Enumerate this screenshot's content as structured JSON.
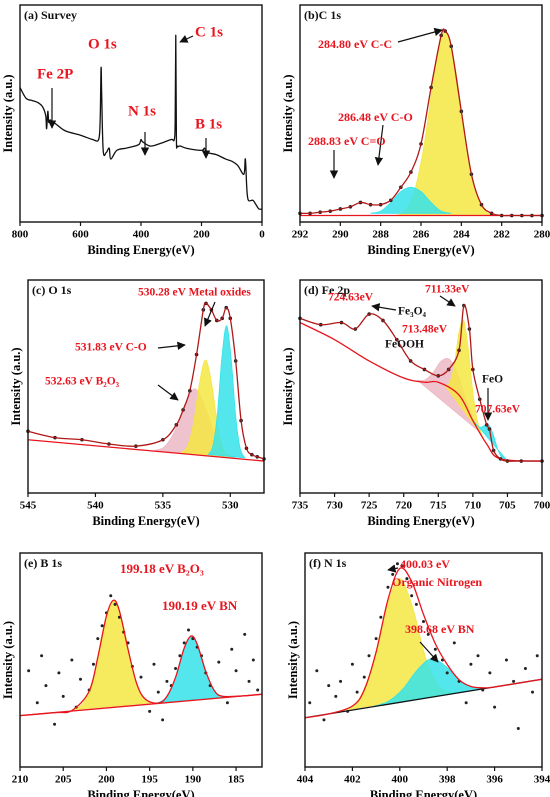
{
  "chart_data": [
    {
      "type": "line",
      "title": "(a) Survey",
      "xlabel": "Binding Energy(eV)",
      "ylabel": "Intensity (a.u.)",
      "xlim": [
        800,
        0
      ],
      "ylim": [
        0,
        100
      ],
      "xticks": [
        800,
        600,
        400,
        200,
        0
      ],
      "envelope": {
        "color": "#111111",
        "markers": false,
        "x": [
          800,
          780,
          760,
          740,
          725,
          715,
          712,
          708,
          705,
          700,
          680,
          650,
          600,
          560,
          540,
          535,
          532,
          530,
          525,
          515,
          505,
          500,
          480,
          450,
          420,
          405,
          400,
          395,
          370,
          340,
          300,
          290,
          287,
          285,
          283,
          280,
          270,
          250,
          200,
          190,
          180,
          150,
          120,
          100,
          80,
          60,
          55,
          50,
          45,
          30,
          20,
          10,
          0
        ],
        "values": [
          62,
          57,
          56,
          55,
          53,
          49,
          43,
          51,
          46,
          47,
          45,
          42,
          40,
          38,
          38,
          47,
          71,
          59,
          33,
          32,
          34,
          29,
          33,
          34,
          35,
          36,
          38,
          37,
          35,
          36,
          38,
          38,
          47,
          86,
          39,
          35,
          35,
          34,
          33,
          34,
          32,
          31,
          29,
          28,
          26,
          22,
          29,
          15,
          10,
          10,
          8,
          6,
          6
        ]
      },
      "annotations": [
        {
          "text": "O 1s",
          "color": "#e8141e"
        },
        {
          "text": "Fe 2P",
          "color": "#e8141e"
        },
        {
          "text": "N 1s",
          "color": "#e8141e"
        },
        {
          "text": "C 1s",
          "color": "#e8141e"
        },
        {
          "text": "B 1s",
          "color": "#e8141e"
        }
      ]
    },
    {
      "type": "line",
      "title": "(b)C 1s",
      "xlabel": "Binding Energy(eV)",
      "ylabel": "Intensity (a.u.)",
      "xlim": [
        292,
        280
      ],
      "ylim": [
        0,
        100
      ],
      "xticks": [
        292,
        290,
        288,
        286,
        284,
        282,
        280
      ],
      "background": {
        "color": "#e8141e",
        "x": [
          292,
          280
        ],
        "values": [
          3,
          3
        ]
      },
      "components": [
        {
          "color": "#f5e642",
          "x": [
            287.3,
            286.8,
            286.3,
            285.8,
            285.3,
            284.8,
            284.3,
            283.8,
            283.3,
            282.8,
            282.3
          ],
          "values": [
            0,
            2,
            12,
            35,
            68,
            85,
            68,
            35,
            12,
            2,
            0
          ]
        },
        {
          "color": "#35e3ea",
          "x": [
            288.5,
            288,
            287.5,
            287,
            286.5,
            286,
            285.5,
            285,
            284.5
          ],
          "values": [
            1,
            2,
            6,
            11,
            13,
            11,
            6,
            2,
            1
          ]
        }
      ],
      "envelope": {
        "color": "#b01818",
        "markers": true,
        "marker_color": "#222222",
        "x": [
          292,
          291.5,
          291,
          290.5,
          290,
          289.5,
          289,
          288.5,
          288,
          287.5,
          287,
          286.5,
          286,
          285.5,
          285,
          284.8,
          284.5,
          284,
          283.5,
          283,
          282.5,
          282,
          281.5,
          281,
          280.5,
          280
        ],
        "values": [
          4,
          4,
          4.5,
          5,
          6,
          7,
          9,
          8,
          8,
          10,
          16,
          23,
          36,
          62,
          86,
          88,
          81,
          51,
          22,
          8,
          4,
          3,
          3,
          3,
          3,
          3
        ]
      },
      "annotations": [
        {
          "text": "284.80 eV C-C",
          "color": "#e8141e"
        },
        {
          "text": "286.48 eV C-O",
          "color": "#e8141e"
        },
        {
          "text": "288.83 eV C=O",
          "color": "#e8141e"
        }
      ]
    },
    {
      "type": "line",
      "title": "(c) O 1s",
      "xlabel": "Binding Energy(eV)",
      "ylabel": "Intensity (a.u.)",
      "xlim": [
        545,
        527.5
      ],
      "ylim": [
        0,
        100
      ],
      "xticks": [
        545,
        540,
        535,
        530
      ],
      "background": {
        "color": "#e8141e",
        "x": [
          545,
          527.5
        ],
        "values": [
          25,
          15
        ]
      },
      "components": [
        {
          "color": "#ecb8c4",
          "x": [
            535.63,
            534.88,
            534.13,
            533.38,
            532.63,
            531.88,
            531.13,
            530.38,
            529.63
          ],
          "values": [
            0.3,
            2.5,
            10,
            23,
            31,
            23,
            10,
            2.5,
            0.3
          ]
        },
        {
          "color": "#f5e642",
          "x": [
            533.63,
            533.18,
            532.73,
            532.28,
            531.83,
            531.38,
            530.93,
            530.48,
            530.03
          ],
          "values": [
            0.5,
            3.6,
            14.6,
            34,
            45,
            34,
            14.6,
            3.6,
            0.5
          ]
        },
        {
          "color": "#35e3ea",
          "x": [
            531.63,
            531.29,
            530.96,
            530.62,
            530.28,
            529.94,
            529.6,
            529.27,
            528.93
          ],
          "values": [
            0.7,
            5,
            20,
            47,
            62,
            47,
            20,
            5,
            0.7
          ]
        }
      ],
      "envelope": {
        "color": "#b01818",
        "markers": true,
        "marker_color": "#222222",
        "x": [
          545,
          543,
          541,
          539,
          537,
          535,
          534,
          533.5,
          533,
          532.5,
          532,
          531.8,
          531.4,
          531,
          530.6,
          530.3,
          530,
          529.6,
          529.2,
          528.8,
          528.4,
          528,
          527.5
        ],
        "values": [
          29,
          26,
          25,
          23,
          22,
          25,
          32,
          39,
          48,
          65,
          86,
          89,
          86,
          81,
          82,
          87,
          82,
          62,
          34,
          21,
          18,
          17,
          16
        ]
      },
      "annotations": [
        {
          "text": "530.28 eV Metal oxides",
          "color": "#e8141e"
        },
        {
          "text": "531.83 eV C-O",
          "color": "#e8141e"
        },
        {
          "text": "532.63 eV B₂O₃",
          "color": "#e8141e"
        }
      ]
    },
    {
      "type": "line",
      "title": "(d) Fe 2p",
      "xlabel": "Binding Energy(eV)",
      "ylabel": "Intensity (a.u.)",
      "xlim": [
        735,
        700
      ],
      "ylim": [
        0,
        100
      ],
      "xticks": [
        735,
        730,
        725,
        720,
        715,
        710,
        705,
        700
      ],
      "background": {
        "color": "#e8141e",
        "x": [
          735,
          730,
          725,
          720,
          717,
          715,
          712,
          710,
          708,
          706,
          700
        ],
        "values": [
          80,
          72,
          62,
          54,
          52,
          52,
          46,
          34,
          23,
          16,
          15
        ]
      },
      "components": [
        {
          "color": "#ecb8c4",
          "x": [
            717.98,
            716.86,
            715.73,
            714.61,
            713.48,
            712.36,
            711.23,
            710.11,
            708.98
          ],
          "values": [
            0.2,
            1.1,
            4.6,
            10.6,
            14,
            10.6,
            4.6,
            1.1,
            0.2
          ]
        },
        {
          "color": "#f5e642",
          "x": [
            714.03,
            713.36,
            712.68,
            712.01,
            711.33,
            710.66,
            709.98,
            709.31,
            708.63
          ],
          "values": [
            0.4,
            3.1,
            12.7,
            29.4,
            39,
            29.4,
            12.7,
            3.1,
            0.4
          ]
        },
        {
          "color": "#35e3ea",
          "x": [
            710.03,
            709.43,
            708.83,
            708.23,
            707.63,
            707.03,
            706.43,
            705.83,
            705.23
          ],
          "values": [
            0.1,
            0.8,
            3.3,
            7.6,
            10,
            7.6,
            3.3,
            0.8,
            0.1
          ]
        }
      ],
      "envelope": {
        "color": "#b01818",
        "markers": true,
        "marker_color": "#222222",
        "x": [
          735,
          732,
          729,
          727,
          725,
          723,
          721,
          719,
          717,
          715,
          713.5,
          712,
          711.3,
          710.5,
          710,
          709,
          708,
          707.6,
          707,
          706,
          705,
          703,
          700
        ],
        "values": [
          82,
          79,
          80,
          77,
          84,
          81,
          72,
          62,
          58,
          55,
          58,
          67,
          88,
          77,
          58,
          44,
          32,
          30,
          20,
          16,
          15,
          15,
          15
        ]
      },
      "annotations": [
        {
          "text": "724.63eV",
          "color": "#e8141e"
        },
        {
          "text": "711.33eV",
          "color": "#e8141e"
        },
        {
          "text": "Fe₃O₄",
          "color": "#111111"
        },
        {
          "text": "713.48eV",
          "color": "#e8141e"
        },
        {
          "text": "FeOOH",
          "color": "#111111"
        },
        {
          "text": "FeO",
          "color": "#111111"
        },
        {
          "text": "707.63eV",
          "color": "#e8141e"
        }
      ]
    },
    {
      "type": "line",
      "title": "(e) B 1s",
      "xlabel": "Binding Energy(eV)",
      "ylabel": "Intensity (a.u.)",
      "xlim": [
        210,
        182
      ],
      "ylim": [
        0,
        100
      ],
      "xticks": [
        210,
        205,
        200,
        195,
        190,
        185
      ],
      "background": {
        "color": "#e8141e",
        "x": [
          210,
          182
        ],
        "values": [
          24,
          34
        ]
      },
      "components": [
        {
          "color": "#f5e642",
          "x": [
            203.68,
            202.56,
            201.43,
            200.31,
            199.18,
            198.06,
            196.93,
            195.81,
            194.68
          ],
          "values": [
            0.6,
            4,
            16,
            38,
            50,
            38,
            16,
            4,
            0.6
          ]
        },
        {
          "color": "#35e3ea",
          "x": [
            194.09,
            193.11,
            192.14,
            191.16,
            190.19,
            189.22,
            188.24,
            187.27,
            186.29
          ],
          "values": [
            0.3,
            2.4,
            9.8,
            22.7,
            30,
            22.7,
            9.8,
            2.4,
            0.3
          ]
        }
      ],
      "points": {
        "color": "#222222",
        "x": [
          209,
          208,
          207.5,
          207,
          206,
          205.5,
          205,
          204,
          203.5,
          203,
          202,
          201.5,
          201,
          200.5,
          200,
          199.5,
          199,
          198.5,
          198,
          197.5,
          197,
          196,
          195,
          194.5,
          194,
          193.5,
          193,
          192.5,
          192,
          191.5,
          191,
          190.5,
          190,
          189.5,
          189,
          188.5,
          188,
          187,
          186,
          185.5,
          185,
          184,
          183.5,
          183,
          182.5
        ],
        "values": [
          45,
          30,
          52,
          38,
          20,
          44,
          33,
          50,
          28,
          41,
          36,
          48,
          60,
          66,
          72,
          80,
          76,
          70,
          63,
          58,
          47,
          42,
          26,
          48,
          35,
          22,
          40,
          38,
          46,
          52,
          58,
          64,
          60,
          56,
          52,
          44,
          38,
          49,
          30,
          55,
          45,
          62,
          40,
          50,
          36
        ]
      },
      "envelope": {
        "color": "#e8141e",
        "markers": false,
        "x": [
          210,
          206,
          204,
          202,
          201,
          200,
          199.2,
          198.5,
          197.5,
          196.5,
          195.5,
          194,
          193,
          192,
          191,
          190.2,
          189.5,
          188.5,
          187.5,
          186.5,
          184,
          182
        ],
        "values": [
          24,
          25.4,
          26.4,
          35.4,
          51.2,
          70.6,
          77.9,
          73,
          55,
          39,
          31.7,
          29.9,
          33,
          41.9,
          55.6,
          61.2,
          57.4,
          44.6,
          35.6,
          33,
          33.3,
          34
        ]
      },
      "annotations": [
        {
          "text": "199.18 eV B₂O₃",
          "color": "#e8141e"
        },
        {
          "text": "190.19 eV BN",
          "color": "#e8141e"
        }
      ]
    },
    {
      "type": "line",
      "title": "(f) N 1s",
      "xlabel": "Binding Energy(eV)",
      "ylabel": "Intensity (a.u.)",
      "xlim": [
        404,
        394
      ],
      "ylim": [
        0,
        100
      ],
      "xticks": [
        404,
        402,
        400,
        398,
        396,
        394
      ],
      "background": {
        "color": "#111111",
        "x": [
          404,
          394
        ],
        "values": [
          23,
          41
        ]
      },
      "components": [
        {
          "color": "#f5e642",
          "x": [
            402.28,
            401.72,
            401.16,
            400.59,
            400.03,
            399.47,
            398.91,
            398.34,
            397.78
          ],
          "values": [
            0.6,
            4.6,
            18.9,
            43.8,
            58,
            43.8,
            18.9,
            4.6,
            0.6
          ]
        },
        {
          "color": "#35e3ea",
          "x": [
            401.08,
            400.48,
            399.88,
            399.28,
            398.68,
            398.08,
            397.48,
            396.88,
            396.28
          ],
          "values": [
            0.2,
            1.4,
            5.9,
            13.6,
            18,
            13.6,
            5.9,
            1.4,
            0.2
          ]
        }
      ],
      "points": {
        "color": "#222222",
        "x": [
          403.8,
          403.5,
          403.2,
          403,
          402.7,
          402.5,
          402.2,
          402,
          401.8,
          401.5,
          401.3,
          401,
          400.8,
          400.5,
          400.3,
          400.1,
          399.9,
          399.7,
          399.5,
          399.3,
          399,
          398.8,
          398.5,
          398.2,
          398,
          397.7,
          397.5,
          397.2,
          397,
          396.7,
          396.5,
          396.2,
          396,
          395.5,
          395.2,
          395,
          394.7,
          394.4,
          394.2
        ],
        "values": [
          30,
          45,
          22,
          38,
          33,
          40,
          26,
          48,
          35,
          42,
          52,
          60,
          70,
          84,
          90,
          95,
          94,
          88,
          80,
          76,
          68,
          62,
          55,
          50,
          44,
          58,
          40,
          30,
          48,
          52,
          36,
          44,
          28,
          50,
          40,
          18,
          46,
          35,
          52
        ]
      },
      "envelope": {
        "color": "#e8141e",
        "markers": false,
        "x": [
          404,
          403,
          402,
          401.5,
          401,
          400.5,
          400,
          399.5,
          399,
          398.5,
          398,
          397.5,
          397,
          396.5,
          396,
          394
        ],
        "values": [
          23,
          24.8,
          28.5,
          36,
          53.7,
          78.2,
          92.8,
          86.7,
          71.3,
          57.6,
          47.9,
          40.8,
          37.6,
          37,
          37.4,
          41
        ]
      },
      "annotations": [
        {
          "text": "400.03 eV",
          "color": "#e8141e"
        },
        {
          "text": "Organic Nitrogen",
          "color": "#e8141e"
        },
        {
          "text": "398.68 eV BN",
          "color": "#e8141e"
        }
      ]
    }
  ]
}
